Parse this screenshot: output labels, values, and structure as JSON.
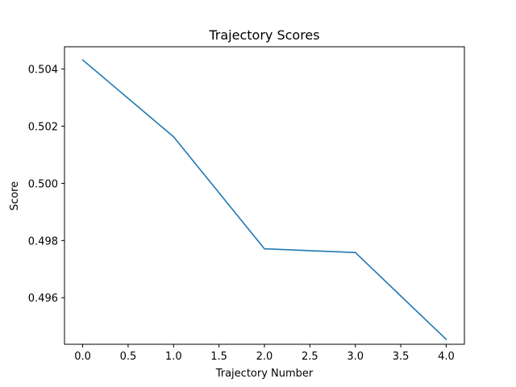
{
  "chart_data": {
    "type": "line",
    "title": "Trajectory Scores",
    "xlabel": "Trajectory Number",
    "ylabel": "Score",
    "xlim": [
      -0.2,
      4.2
    ],
    "ylim": [
      0.49437,
      0.50478
    ],
    "xticks": [
      0.0,
      0.5,
      1.0,
      1.5,
      2.0,
      2.5,
      3.0,
      3.5,
      4.0
    ],
    "xtick_labels": [
      "0.0",
      "0.5",
      "1.0",
      "1.5",
      "2.0",
      "2.5",
      "3.0",
      "3.5",
      "4.0"
    ],
    "yticks": [
      0.496,
      0.498,
      0.5,
      0.502,
      0.504
    ],
    "ytick_labels": [
      "0.496",
      "0.498",
      "0.500",
      "0.502",
      "0.504"
    ],
    "grid": false,
    "series": [
      {
        "x": [
          0,
          1,
          2,
          3,
          4
        ],
        "values": [
          0.50432,
          0.50163,
          0.49771,
          0.49758,
          0.49454
        ],
        "color": "#1f77b4"
      }
    ]
  }
}
